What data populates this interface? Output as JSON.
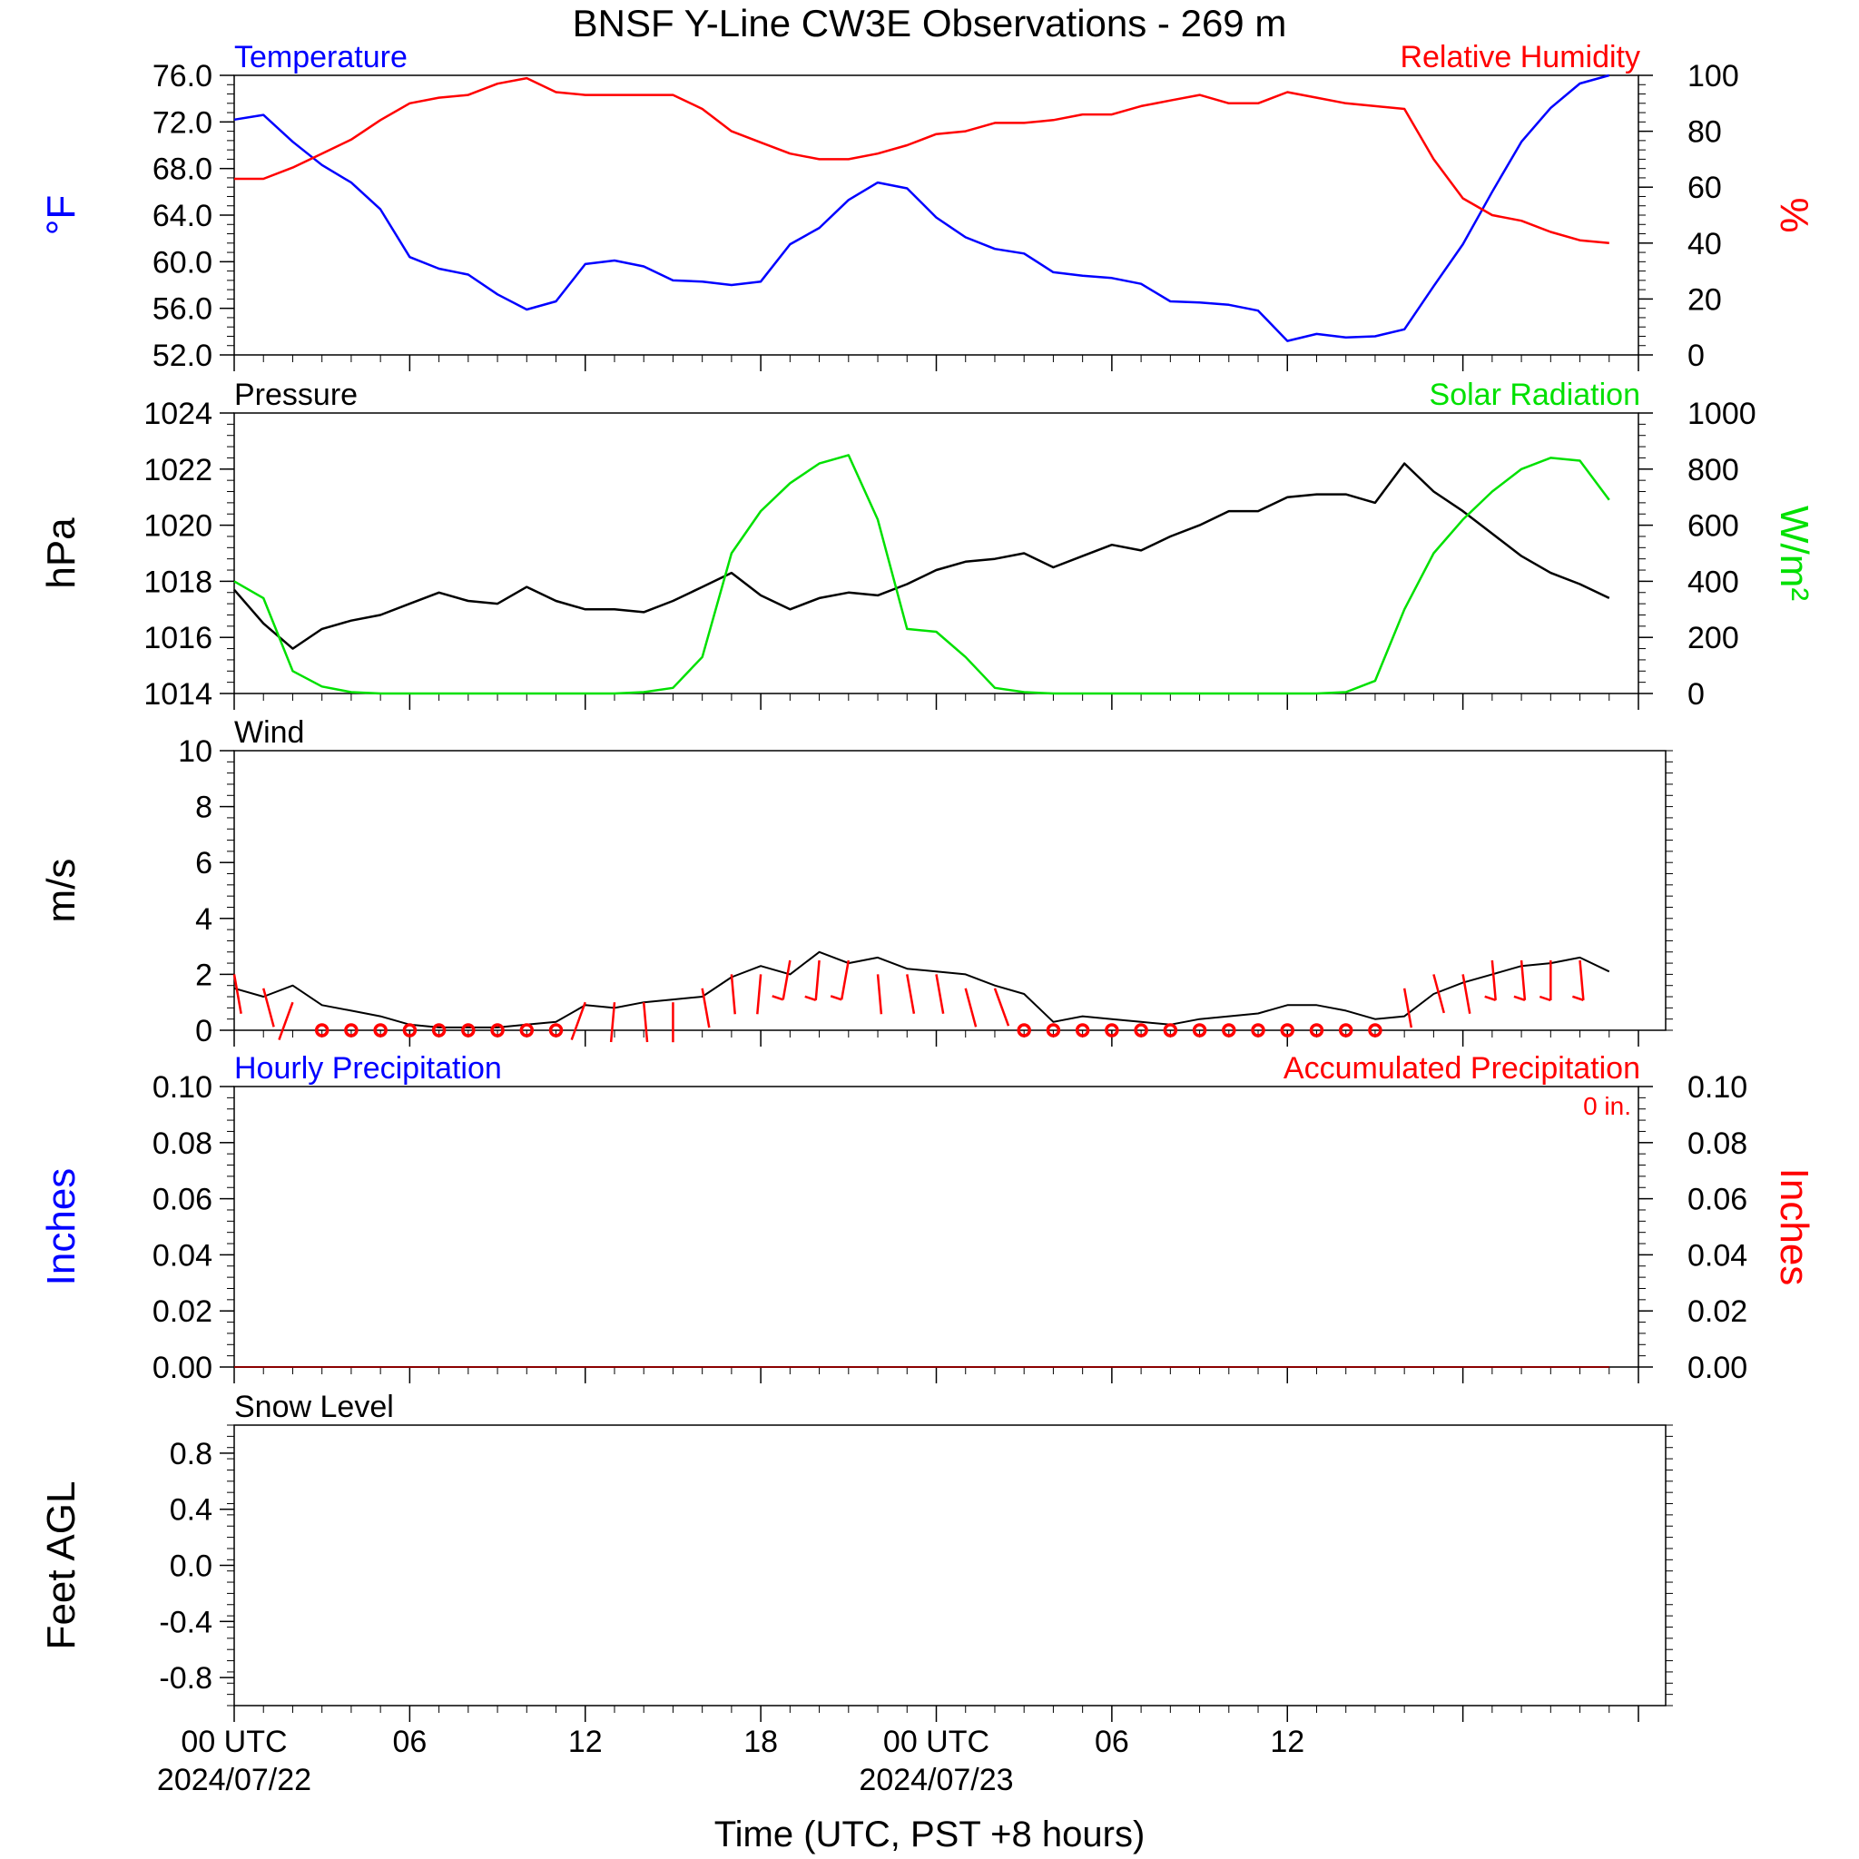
{
  "title": "BNSF Y-Line CW3E Observations - 269 m",
  "xlabel": "Time (UTC, PST +8 hours)",
  "x_ticks": [
    {
      "hour": 0,
      "label": "00 UTC",
      "date": "2024/07/22"
    },
    {
      "hour": 6,
      "label": "06",
      "date": ""
    },
    {
      "hour": 12,
      "label": "12",
      "date": ""
    },
    {
      "hour": 18,
      "label": "18",
      "date": ""
    },
    {
      "hour": 24,
      "label": "00 UTC",
      "date": "2024/07/23"
    },
    {
      "hour": 30,
      "label": "06",
      "date": ""
    },
    {
      "hour": 36,
      "label": "12",
      "date": ""
    }
  ],
  "colors": {
    "temperature": "#0000ff",
    "humidity": "#ff0000",
    "pressure": "#000000",
    "solar": "#00e000",
    "wind_barb": "#ff0000",
    "precip": "#8b0000"
  },
  "chart_data": [
    {
      "type": "line",
      "panel": "temperature-humidity",
      "left_title": "Temperature",
      "right_title": "Relative Humidity",
      "ylabel_left": "°F",
      "ylabel_right": "%",
      "ylim_left": [
        52,
        76
      ],
      "ylim_right": [
        0,
        100
      ],
      "yticks_left": [
        "76.0",
        "72.0",
        "68.0",
        "64.0",
        "60.0",
        "56.0",
        "52.0"
      ],
      "yticks_right": [
        "100",
        "80",
        "60",
        "40",
        "20",
        "0"
      ],
      "x_hours": [
        0,
        1,
        2,
        3,
        4,
        5,
        6,
        7,
        8,
        9,
        10,
        11,
        12,
        13,
        14,
        15,
        16,
        17,
        18,
        19,
        20,
        21,
        22,
        23,
        24,
        25,
        26,
        27,
        28,
        29,
        30,
        31,
        32,
        33,
        34,
        35,
        36,
        37,
        38,
        39,
        40,
        41,
        42,
        43,
        44,
        45,
        46,
        47
      ],
      "series": [
        {
          "name": "Temperature",
          "axis": "left",
          "values": [
            72.2,
            72.6,
            70.3,
            68.3,
            66.8,
            64.5,
            60.4,
            59.4,
            58.9,
            57.2,
            55.9,
            56.6,
            59.8,
            60.1,
            59.6,
            58.4,
            58.3,
            58.0,
            58.3,
            61.5,
            62.9,
            65.3,
            66.8,
            66.3,
            63.8,
            62.1,
            61.1,
            60.7,
            59.1,
            58.8,
            58.6,
            58.1,
            56.6,
            56.5,
            56.3,
            55.8,
            53.2,
            53.8,
            53.5,
            53.6,
            54.2,
            57.9,
            61.5,
            66.0,
            70.3,
            73.2,
            75.3,
            76.0
          ]
        },
        {
          "name": "Relative Humidity",
          "axis": "right",
          "values": [
            63,
            63,
            67,
            72,
            77,
            84,
            90,
            92,
            93,
            97,
            99,
            94,
            93,
            93,
            93,
            93,
            88,
            80,
            76,
            72,
            70,
            70,
            72,
            75,
            79,
            80,
            83,
            83,
            84,
            86,
            86,
            89,
            91,
            93,
            90,
            90,
            94,
            92,
            90,
            89,
            88,
            70,
            56,
            50,
            48,
            44,
            41,
            40
          ]
        }
      ]
    },
    {
      "type": "line",
      "panel": "pressure-solar",
      "left_title": "Pressure",
      "right_title": "Solar Radiation",
      "ylabel_left": "hPa",
      "ylabel_right": "W/m²",
      "ylim_left": [
        1014,
        1024
      ],
      "ylim_right": [
        0,
        1000
      ],
      "yticks_left": [
        "1024",
        "1022",
        "1020",
        "1018",
        "1016",
        "1014"
      ],
      "yticks_right": [
        "1000",
        "800",
        "600",
        "400",
        "200",
        "0"
      ],
      "x_hours": [
        0,
        1,
        2,
        3,
        4,
        5,
        6,
        7,
        8,
        9,
        10,
        11,
        12,
        13,
        14,
        15,
        16,
        17,
        18,
        19,
        20,
        21,
        22,
        23,
        24,
        25,
        26,
        27,
        28,
        29,
        30,
        31,
        32,
        33,
        34,
        35,
        36,
        37,
        38,
        39,
        40,
        41,
        42,
        43,
        44,
        45,
        46,
        47
      ],
      "series": [
        {
          "name": "Pressure",
          "axis": "left",
          "values": [
            1017.7,
            1016.5,
            1015.6,
            1016.3,
            1016.6,
            1016.8,
            1017.2,
            1017.6,
            1017.3,
            1017.2,
            1017.8,
            1017.3,
            1017.0,
            1017.0,
            1016.9,
            1017.3,
            1017.8,
            1018.3,
            1017.5,
            1017.0,
            1017.4,
            1017.6,
            1017.5,
            1017.9,
            1018.4,
            1018.7,
            1018.8,
            1019.0,
            1018.5,
            1018.9,
            1019.3,
            1019.1,
            1019.6,
            1020.0,
            1020.5,
            1020.5,
            1021.0,
            1021.1,
            1021.1,
            1020.8,
            1022.2,
            1021.2,
            1020.5,
            1019.7,
            1018.9,
            1018.3,
            1017.9,
            1017.4
          ]
        },
        {
          "name": "Solar Radiation",
          "axis": "right",
          "values": [
            400,
            340,
            80,
            25,
            5,
            0,
            0,
            0,
            0,
            0,
            0,
            0,
            0,
            0,
            5,
            20,
            130,
            500,
            650,
            750,
            820,
            850,
            620,
            230,
            220,
            130,
            20,
            5,
            0,
            0,
            0,
            0,
            0,
            0,
            0,
            0,
            0,
            0,
            5,
            45,
            300,
            500,
            620,
            720,
            800,
            840,
            830,
            690
          ]
        }
      ]
    },
    {
      "type": "line",
      "panel": "wind",
      "left_title": "Wind",
      "ylabel": "m/s",
      "ylim": [
        0,
        10
      ],
      "yticks": [
        "10",
        "8",
        "6",
        "4",
        "2",
        "0"
      ],
      "x_hours": [
        0,
        1,
        2,
        3,
        4,
        5,
        6,
        7,
        8,
        9,
        10,
        11,
        12,
        13,
        14,
        15,
        16,
        17,
        18,
        19,
        20,
        21,
        22,
        23,
        24,
        25,
        26,
        27,
        28,
        29,
        30,
        31,
        32,
        33,
        34,
        35,
        36,
        37,
        38,
        39,
        40,
        41,
        42,
        43,
        44,
        45,
        46,
        47
      ],
      "series": [
        {
          "name": "Wind Speed",
          "values": [
            1.5,
            1.2,
            1.6,
            0.9,
            0.7,
            0.5,
            0.2,
            0.1,
            0.1,
            0.1,
            0.2,
            0.3,
            0.9,
            0.8,
            1.0,
            1.1,
            1.2,
            1.9,
            2.3,
            2.0,
            2.8,
            2.4,
            2.6,
            2.2,
            2.1,
            2.0,
            1.6,
            1.3,
            0.3,
            0.5,
            0.4,
            0.3,
            0.2,
            0.4,
            0.5,
            0.6,
            0.9,
            0.9,
            0.7,
            0.4,
            0.5,
            1.3,
            1.7,
            2.0,
            2.3,
            2.4,
            2.6,
            2.1
          ]
        }
      ],
      "barbs": [
        {
          "hour": 0,
          "dir": 10,
          "speed": 2
        },
        {
          "hour": 1,
          "dir": 15,
          "speed": 1.5
        },
        {
          "hour": 2,
          "dir": 340,
          "speed": 1
        },
        {
          "hour": 3,
          "dir": 0,
          "speed": 0
        },
        {
          "hour": 4,
          "dir": 0,
          "speed": 0
        },
        {
          "hour": 5,
          "dir": 0,
          "speed": 0
        },
        {
          "hour": 6,
          "dir": 0,
          "speed": 0
        },
        {
          "hour": 7,
          "dir": 0,
          "speed": 0
        },
        {
          "hour": 8,
          "dir": 0,
          "speed": 0
        },
        {
          "hour": 9,
          "dir": 0,
          "speed": 0
        },
        {
          "hour": 10,
          "dir": 0,
          "speed": 0
        },
        {
          "hour": 11,
          "dir": 0,
          "speed": 0
        },
        {
          "hour": 12,
          "dir": 340,
          "speed": 1
        },
        {
          "hour": 13,
          "dir": 355,
          "speed": 1
        },
        {
          "hour": 14,
          "dir": 5,
          "speed": 1
        },
        {
          "hour": 15,
          "dir": 0,
          "speed": 1
        },
        {
          "hour": 16,
          "dir": 10,
          "speed": 1.5
        },
        {
          "hour": 17,
          "dir": 5,
          "speed": 2
        },
        {
          "hour": 18,
          "dir": 355,
          "speed": 2
        },
        {
          "hour": 19,
          "dir": 350,
          "speed": 2.5
        },
        {
          "hour": 20,
          "dir": 355,
          "speed": 2.5
        },
        {
          "hour": 21,
          "dir": 350,
          "speed": 2.5
        },
        {
          "hour": 22,
          "dir": 5,
          "speed": 2
        },
        {
          "hour": 23,
          "dir": 10,
          "speed": 2
        },
        {
          "hour": 24,
          "dir": 10,
          "speed": 2
        },
        {
          "hour": 25,
          "dir": 15,
          "speed": 1.5
        },
        {
          "hour": 26,
          "dir": 20,
          "speed": 1.5
        },
        {
          "hour": 27,
          "dir": 0,
          "speed": 0
        },
        {
          "hour": 28,
          "dir": 0,
          "speed": 0
        },
        {
          "hour": 29,
          "dir": 0,
          "speed": 0
        },
        {
          "hour": 30,
          "dir": 0,
          "speed": 0
        },
        {
          "hour": 31,
          "dir": 0,
          "speed": 0
        },
        {
          "hour": 32,
          "dir": 0,
          "speed": 0
        },
        {
          "hour": 33,
          "dir": 0,
          "speed": 0
        },
        {
          "hour": 34,
          "dir": 0,
          "speed": 0
        },
        {
          "hour": 35,
          "dir": 0,
          "speed": 0
        },
        {
          "hour": 36,
          "dir": 0,
          "speed": 0
        },
        {
          "hour": 37,
          "dir": 0,
          "speed": 0
        },
        {
          "hour": 38,
          "dir": 0,
          "speed": 0
        },
        {
          "hour": 39,
          "dir": 0,
          "speed": 0
        },
        {
          "hour": 40,
          "dir": 10,
          "speed": 1.5
        },
        {
          "hour": 41,
          "dir": 15,
          "speed": 2
        },
        {
          "hour": 42,
          "dir": 10,
          "speed": 2
        },
        {
          "hour": 43,
          "dir": 5,
          "speed": 2.5
        },
        {
          "hour": 44,
          "dir": 5,
          "speed": 2.5
        },
        {
          "hour": 45,
          "dir": 0,
          "speed": 2.5
        },
        {
          "hour": 46,
          "dir": 5,
          "speed": 2.5
        }
      ]
    },
    {
      "type": "line",
      "panel": "precipitation",
      "left_title": "Hourly Precipitation",
      "right_title": "Accumulated Precipitation",
      "annotation": "0 in.",
      "ylabel_left": "Inches",
      "ylabel_right": "Inches",
      "ylim": [
        0,
        0.1
      ],
      "yticks": [
        "0.10",
        "0.08",
        "0.06",
        "0.04",
        "0.02",
        "0.00"
      ],
      "series": [
        {
          "name": "Hourly Precipitation",
          "x_hours": [
            0,
            47
          ],
          "values": [
            0,
            0
          ]
        },
        {
          "name": "Accumulated Precipitation",
          "x_hours": [
            0,
            47
          ],
          "values": [
            0,
            0
          ]
        }
      ]
    },
    {
      "type": "line",
      "panel": "snow-level",
      "left_title": "Snow Level",
      "ylabel": "Feet AGL",
      "ylim": [
        -1,
        1
      ],
      "yticks": [
        "0.8",
        "0.4",
        "0.0",
        "-0.4",
        "-0.8"
      ],
      "series": []
    }
  ]
}
